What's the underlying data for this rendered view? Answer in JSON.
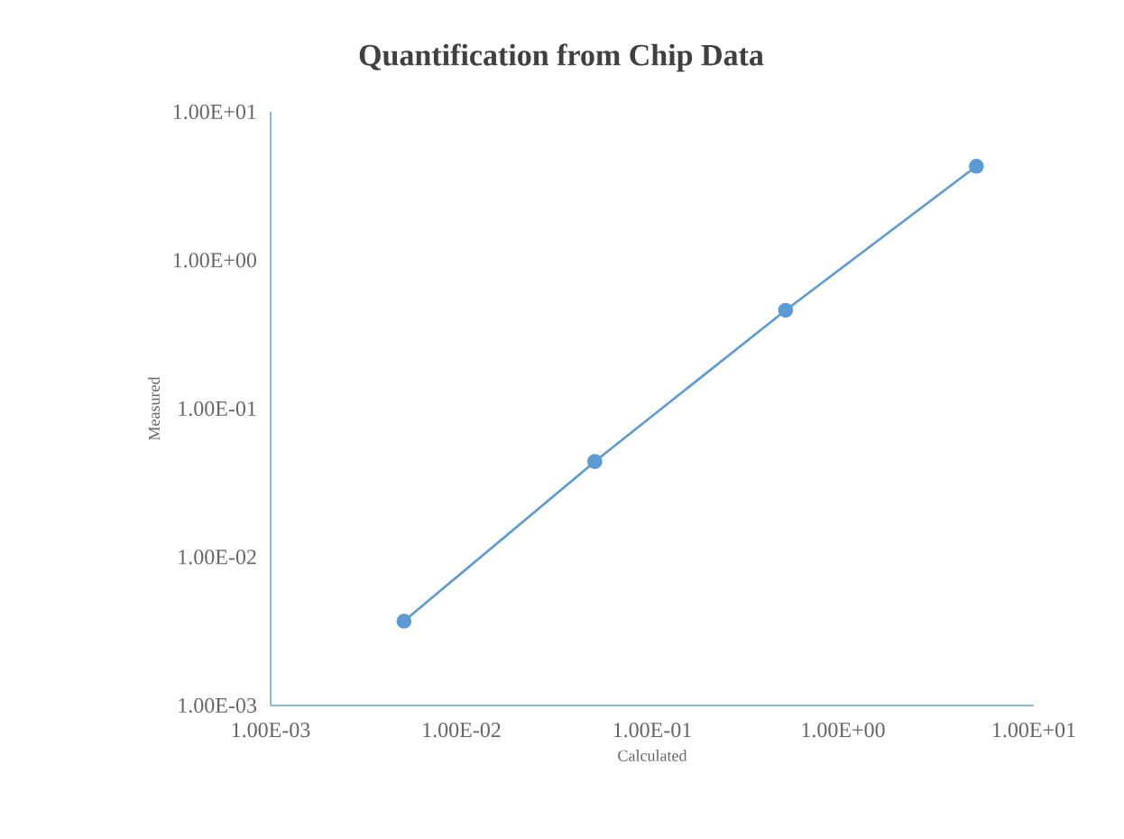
{
  "chart_data": {
    "type": "line",
    "title": "Quantification from Chip Data",
    "xlabel": "Calculated",
    "ylabel": "Measured",
    "log": "xy",
    "marker": "circle",
    "color": "#5b9bd5",
    "x": [
      0.005,
      0.05,
      0.5,
      5
    ],
    "values": [
      0.0037,
      0.044,
      0.46,
      4.3
    ],
    "xlim": [
      0.001,
      10
    ],
    "ylim": [
      0.001,
      10
    ],
    "xticks": [
      {
        "value": 0.001,
        "label": "1.00E-03"
      },
      {
        "value": 0.01,
        "label": "1.00E-02"
      },
      {
        "value": 0.1,
        "label": "1.00E-01"
      },
      {
        "value": 1,
        "label": "1.00E+00"
      },
      {
        "value": 10,
        "label": "1.00E+01"
      }
    ],
    "yticks": [
      {
        "value": 0.001,
        "label": "1.00E-03"
      },
      {
        "value": 0.01,
        "label": "1.00E-02"
      },
      {
        "value": 0.1,
        "label": "1.00E-01"
      },
      {
        "value": 1,
        "label": "1.00E+00"
      },
      {
        "value": 10,
        "label": "1.00E+01"
      }
    ]
  }
}
